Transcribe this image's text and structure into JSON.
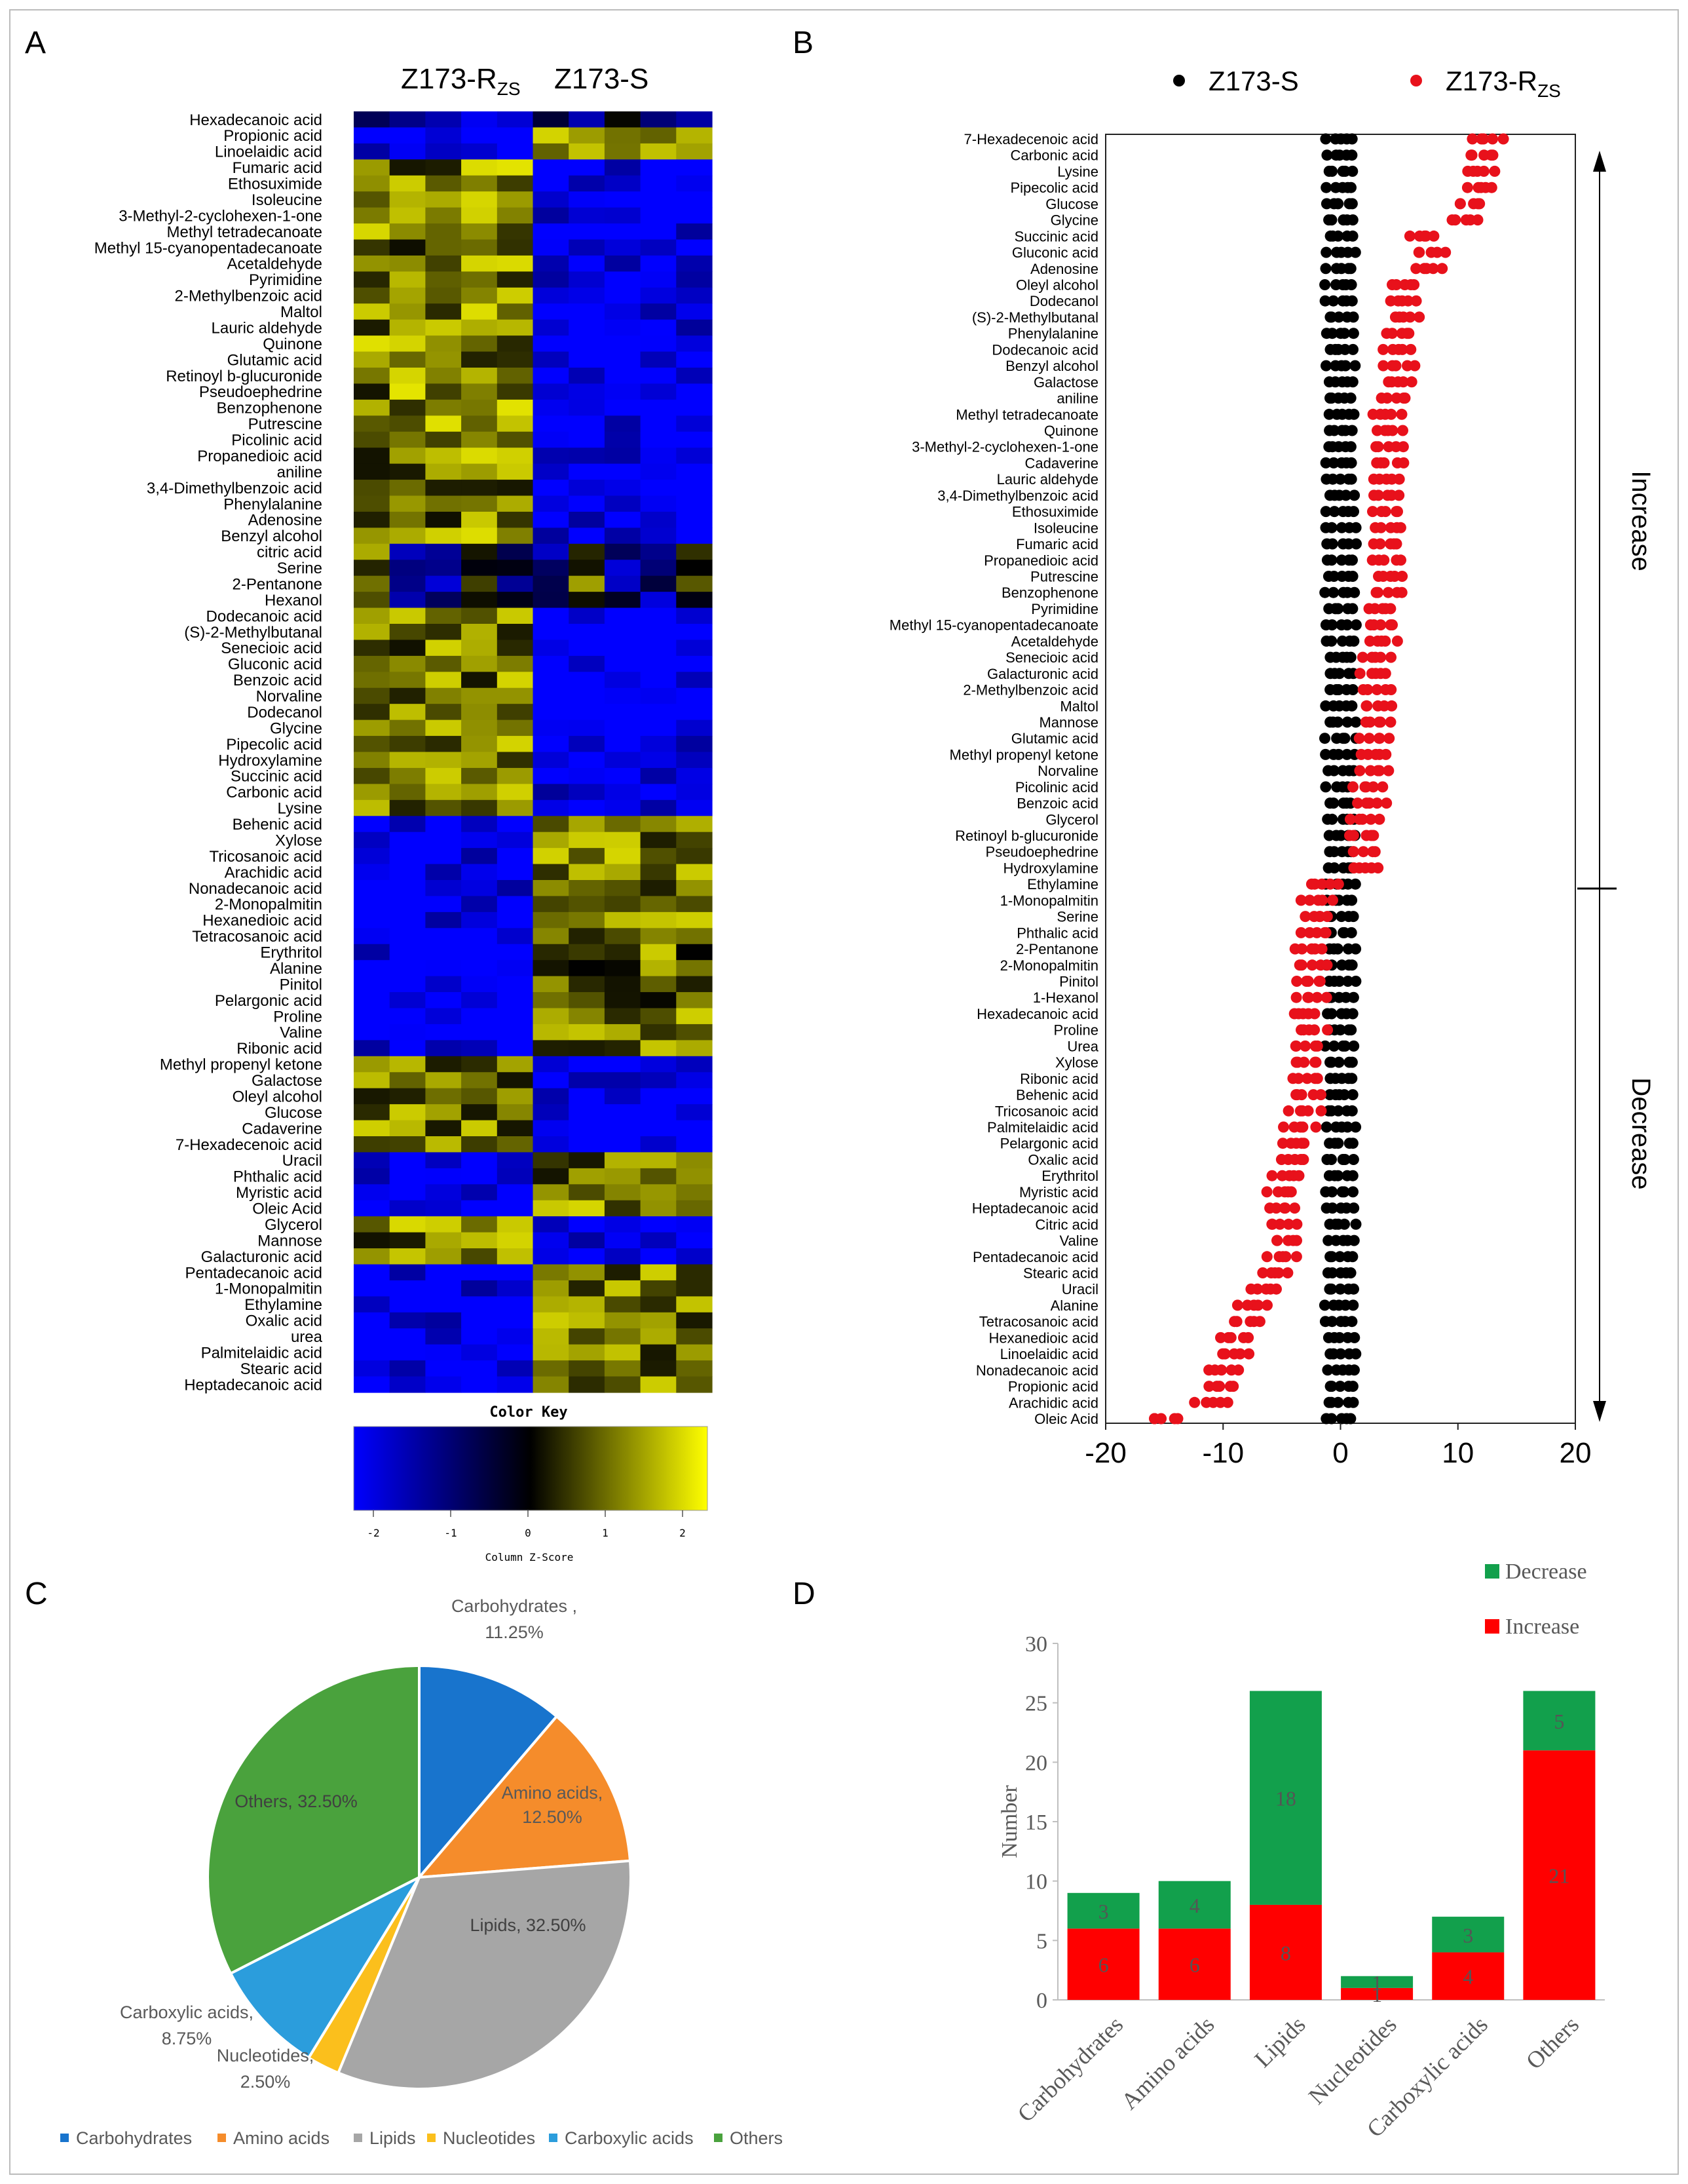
{
  "panel_labels": [
    "A",
    "B",
    "C",
    "D"
  ],
  "chart_data": [
    {
      "panel": "A",
      "type": "heatmap",
      "column_groups": [
        {
          "main": "Z173-R",
          "sub": "ZS"
        },
        {
          "main": "Z173-S",
          "sub": ""
        }
      ],
      "n_columns_per_group": 5,
      "rows": [
        "Hexadecanoic acid",
        "Propionic acid",
        "Linoelaidic acid",
        "Fumaric acid",
        "Ethosuximide",
        "Isoleucine",
        "3-Methyl-2-cyclohexen-1-one",
        "Methyl tetradecanoate",
        "Methyl 15-cyanopentadecanoate",
        "Acetaldehyde",
        "Pyrimidine",
        "2-Methylbenzoic acid",
        "Maltol",
        "Lauric aldehyde",
        "Quinone",
        "Glutamic acid",
        "Retinoyl b-glucuronide",
        "Pseudoephedrine",
        "Benzophenone",
        "Putrescine",
        "Picolinic acid",
        "Propanedioic acid",
        "aniline",
        "3,4-Dimethylbenzoic acid",
        "Phenylalanine",
        "Adenosine",
        "Benzyl alcohol",
        "citric acid",
        "Serine",
        "2-Pentanone",
        "Hexanol",
        "Dodecanoic acid",
        "(S)-2-Methylbutanal",
        "Senecioic acid",
        "Gluconic acid",
        "Benzoic acid",
        "Norvaline",
        "Dodecanol",
        "Glycine",
        "Pipecolic acid",
        "Hydroxylamine",
        "Succinic acid",
        "Carbonic acid",
        "Lysine",
        "Behenic acid",
        "Xylose",
        "Tricosanoic acid",
        "Arachidic acid",
        "Nonadecanoic acid",
        "2-Monopalmitin",
        "Hexanedioic acid",
        "Tetracosanoic acid",
        "Erythritol",
        "Alanine",
        "Pinitol",
        "Pelargonic acid",
        "Proline",
        "Valine",
        "Ribonic acid",
        "Methyl propenyl ketone",
        "Galactose",
        "Oleyl alcohol",
        "Glucose",
        "Cadaverine",
        "7-Hexadecenoic acid",
        "Uracil",
        "Phthalic acid",
        "Myristic acid",
        "Oleic Acid",
        "Glycerol",
        "Mannose",
        "Galacturonic acid",
        "Pentadecanoic acid",
        "1-Monopalmitin",
        "Ethylamine",
        "Oxalic acid",
        "urea",
        "Palmitelaidic acid",
        "Stearic acid",
        "Heptadecanoic acid"
      ],
      "row_pattern": [
        0,
        1,
        1,
        2,
        2,
        2,
        2,
        2,
        2,
        2,
        2,
        2,
        2,
        2,
        2,
        2,
        2,
        2,
        2,
        2,
        2,
        2,
        2,
        2,
        2,
        2,
        2,
        3,
        3,
        3,
        3,
        2,
        2,
        2,
        2,
        2,
        2,
        2,
        2,
        2,
        2,
        2,
        2,
        2,
        1,
        1,
        1,
        1,
        1,
        1,
        1,
        1,
        1,
        1,
        1,
        1,
        1,
        1,
        1,
        2,
        2,
        2,
        2,
        2,
        2,
        1,
        1,
        1,
        1,
        2,
        2,
        2,
        1,
        1,
        1,
        1,
        1,
        1,
        1,
        1
      ],
      "color_key": {
        "title": "Color Key",
        "ticks": [
          "-2",
          "-1",
          "0",
          "1",
          "2"
        ],
        "xlabel": "Column Z-Score",
        "low": "#0000ff",
        "mid": "#000000",
        "high": "#ffff00"
      }
    },
    {
      "panel": "B",
      "type": "scatter",
      "legend": [
        {
          "name": "Z173-S",
          "sub": "",
          "color": "#000000"
        },
        {
          "name": "Z173-R",
          "sub": "ZS",
          "color": "#e8111b"
        }
      ],
      "categories": [
        "7-Hexadecenoic acid",
        "Carbonic acid",
        "Lysine",
        "Pipecolic acid",
        "Glucose",
        "Glycine",
        "Succinic acid",
        "Gluconic acid",
        "Adenosine",
        "Oleyl alcohol",
        "Dodecanol",
        "(S)-2-Methylbutanal",
        "Phenylalanine",
        "Dodecanoic acid",
        "Benzyl alcohol",
        "Galactose",
        "aniline",
        "Methyl tetradecanoate",
        "Quinone",
        "3-Methyl-2-cyclohexen-1-one",
        "Cadaverine",
        "Lauric aldehyde",
        "3,4-Dimethylbenzoic acid",
        "Ethosuximide",
        "Isoleucine",
        "Fumaric acid",
        "Propanedioic acid",
        "Putrescine",
        "Benzophenone",
        "Pyrimidine",
        "Methyl 15-cyanopentadecanoate",
        "Acetaldehyde",
        "Senecioic acid",
        "Galacturonic acid",
        "2-Methylbenzoic acid",
        "Maltol",
        "Mannose",
        "Glutamic acid",
        "Methyl propenyl ketone",
        "Norvaline",
        "Picolinic acid",
        "Benzoic acid",
        "Glycerol",
        "Retinoyl b-glucuronide",
        "Pseudoephedrine",
        "Hydroxylamine",
        "Ethylamine",
        "1-Monopalmitin",
        "Serine",
        "Phthalic acid",
        "2-Pentanone",
        "2-Monopalmitin",
        "Pinitol",
        "1-Hexanol",
        "Hexadecanoic acid",
        "Proline",
        "Urea",
        "Xylose",
        "Ribonic acid",
        "Behenic acid",
        "Tricosanoic acid",
        "Palmitelaidic acid",
        "Pelargonic acid",
        "Oxalic acid",
        "Erythritol",
        "Myristic acid",
        "Heptadecanoic acid",
        "Citric acid",
        "Valine",
        "Pentadecanoic acid",
        "Stearic acid",
        "Uracil",
        "Alanine",
        "Tetracosanoic acid",
        "Hexanedioic acid",
        "Linoelaidic acid",
        "Nonadecanoic acid",
        "Propionic acid",
        "Arachidic acid",
        "Oleic Acid"
      ],
      "red_center": [
        12.5,
        12,
        12,
        12,
        11,
        10.5,
        7,
        7.5,
        7.5,
        5.5,
        5.5,
        5.5,
        5,
        5,
        5,
        5,
        4.5,
        4,
        4,
        4,
        4,
        4,
        4,
        4,
        4,
        4,
        4,
        4,
        4,
        3.5,
        3.5,
        3.5,
        3,
        3,
        3,
        3,
        3,
        3,
        3,
        3,
        2.5,
        2.5,
        2,
        2,
        2,
        2,
        -1.5,
        -2,
        -2,
        -2,
        -2.5,
        -2.5,
        -2.5,
        -2.5,
        -3,
        -2.5,
        -3,
        -3,
        -3,
        -3,
        -3,
        -3.5,
        -4,
        -4,
        -4.5,
        -5,
        -5,
        -5,
        -4.5,
        -5,
        -5.5,
        -6.5,
        -7.5,
        -8,
        -9,
        -9,
        -10,
        -10,
        -11,
        -15
      ],
      "xlim": [
        -20,
        20
      ],
      "xticks": [
        "-20",
        "-10",
        "0",
        "10",
        "20"
      ],
      "annotations": [
        "Increase",
        "Decrease"
      ]
    },
    {
      "panel": "C",
      "type": "pie",
      "slices": [
        {
          "name": "Carbohydrates",
          "value": 11.25,
          "label": "Carbohydrates ,",
          "pct": "11.25%",
          "color": "#1874cd"
        },
        {
          "name": "Amino acids",
          "value": 12.5,
          "label": "Amino acids,",
          "pct": "12.50%",
          "color": "#f58c2b"
        },
        {
          "name": "Lipids",
          "value": 32.5,
          "label": "Lipids, 32.50%",
          "pct": "",
          "color": "#a6a6a6"
        },
        {
          "name": "Nucleotides",
          "value": 2.5,
          "label": "Nucleotides,",
          "pct": "2.50%",
          "color": "#fbbf1c"
        },
        {
          "name": "Carboxylic acids",
          "value": 8.75,
          "label": "Carboxylic acids,",
          "pct": "8.75%",
          "color": "#2b9ddc"
        },
        {
          "name": "Others",
          "value": 32.5,
          "label": "Others, 32.50%",
          "pct": "",
          "color": "#4aa23d"
        }
      ],
      "legend": [
        "Carbohydrates",
        "Amino acids",
        "Lipids",
        "Nucleotides",
        "Carboxylic acids",
        "Others"
      ]
    },
    {
      "panel": "D",
      "type": "bar",
      "stacked": true,
      "categories": [
        "Carbohydrates",
        "Amino acids",
        "Lipids",
        "Nucleotides",
        "Carboxylic acids",
        "Others"
      ],
      "series": [
        {
          "name": "Increase",
          "values": [
            6,
            6,
            8,
            1,
            4,
            21
          ],
          "color": "#ff0000"
        },
        {
          "name": "Decrease",
          "values": [
            3,
            4,
            18,
            1,
            3,
            5
          ],
          "color": "#12a04c"
        }
      ],
      "ylabel": "Number",
      "ylim": [
        0,
        30
      ],
      "yticks": [
        "0",
        "5",
        "10",
        "15",
        "20",
        "25",
        "30"
      ]
    }
  ]
}
